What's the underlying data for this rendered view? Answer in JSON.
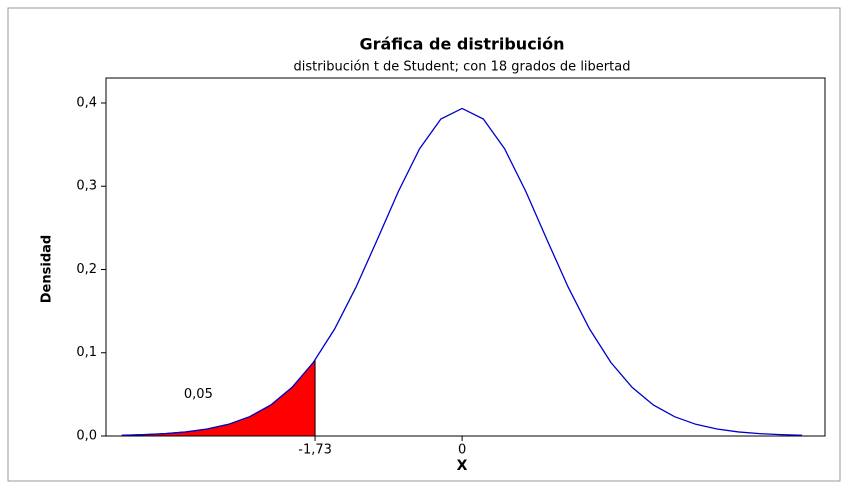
{
  "chart_data": {
    "type": "line",
    "title": "Gráfica de distribución",
    "subtitle": "distribución t de Student; con 18 grados de libertad",
    "x_label": "X",
    "y_label": "Densidad",
    "xlim": [
      -4.19,
      4.27
    ],
    "ylim": [
      0,
      0.43
    ],
    "xticks": [
      {
        "value": -1.73,
        "label": "-1,73"
      },
      0
    ],
    "yticks": [
      {
        "value": 0,
        "label": "0,0"
      },
      {
        "value": 0.1,
        "label": "0,1"
      },
      {
        "value": 0.2,
        "label": "0,2"
      },
      {
        "value": 0.3,
        "label": "0,3"
      },
      {
        "value": 0.4,
        "label": "0,4"
      }
    ],
    "x": [
      -4,
      -3.75,
      -3.5,
      -3.25,
      -3,
      -2.75,
      -2.5,
      -2.25,
      -2,
      -1.75,
      -1.5,
      -1.25,
      -1,
      -0.75,
      -0.5,
      -0.25,
      0,
      0.25,
      0.5,
      0.75,
      1,
      1.25,
      1.5,
      1.75,
      2,
      2.25,
      2.5,
      2.75,
      3,
      3.25,
      3.5,
      3.75,
      4
    ],
    "values": [
      0.00093,
      0.00163,
      0.00284,
      0.0049,
      0.00836,
      0.01405,
      0.0232,
      0.0373,
      0.0585,
      0.0884,
      0.1285,
      0.1784,
      0.2354,
      0.2937,
      0.3451,
      0.3807,
      0.3934,
      0.3807,
      0.3451,
      0.2937,
      0.2354,
      0.1784,
      0.1285,
      0.0884,
      0.0585,
      0.0373,
      0.0232,
      0.01405,
      0.00836,
      0.0049,
      0.00284,
      0.00163,
      0.00093
    ],
    "color": "#0000cc",
    "shaded": {
      "x": [
        -4,
        -3.75,
        -3.5,
        -3.25,
        -3,
        -2.75,
        -2.5,
        -2.25,
        -2,
        -1.75,
        -1.73
      ],
      "values": [
        0.00093,
        0.00163,
        0.00284,
        0.0049,
        0.00836,
        0.01405,
        0.0232,
        0.0373,
        0.0585,
        0.0884,
        0.0913
      ],
      "color": "#ff0000",
      "label": "0,05"
    }
  }
}
